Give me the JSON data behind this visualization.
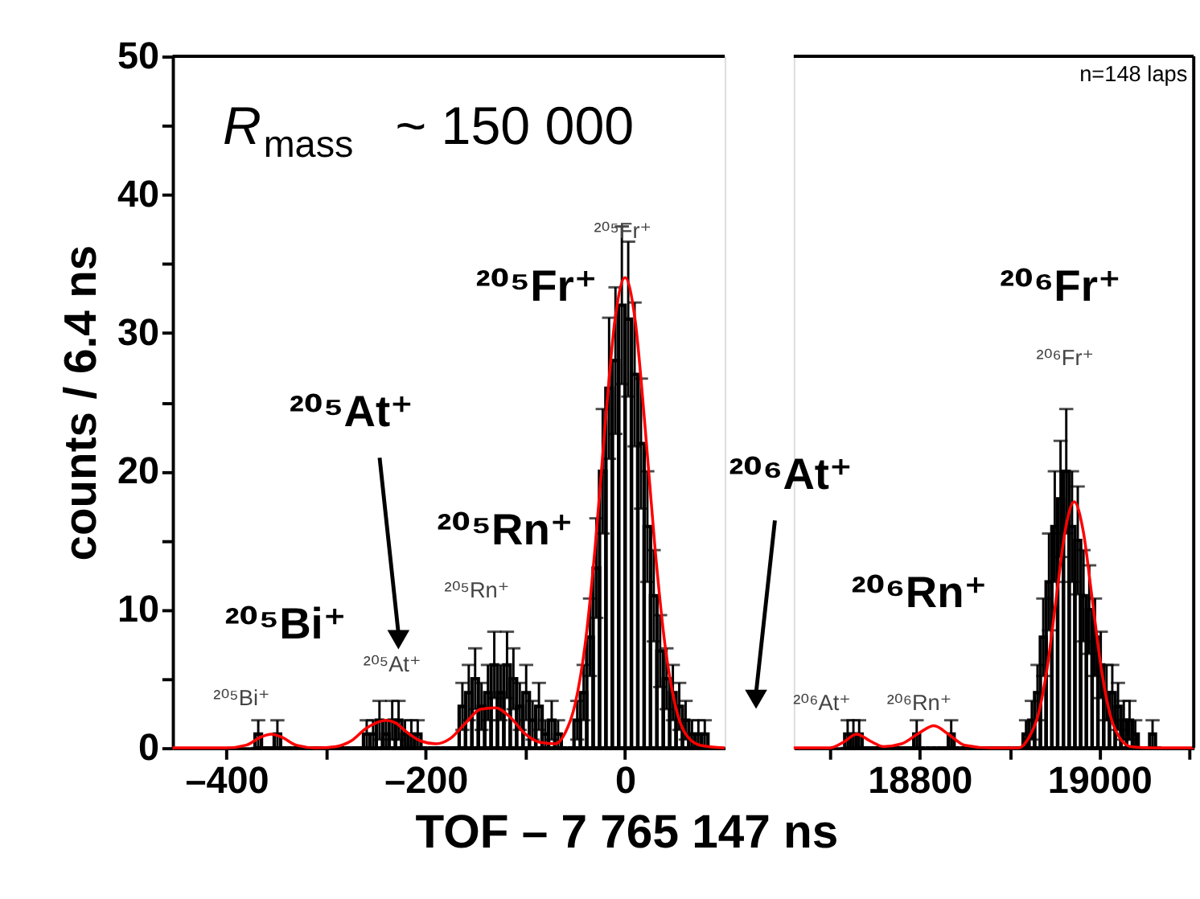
{
  "chart_data": [
    {
      "type": "histogram",
      "ylabel": "counts / 6.4 ns",
      "xlabel": "TOF – 7 765 147 ns",
      "xlim": [
        -454,
        100
      ],
      "xticks": [
        {
          "value": -400,
          "label": "–400"
        },
        {
          "value": -300,
          "label": null
        },
        {
          "value": -200,
          "label": "–200"
        },
        {
          "value": -100,
          "label": null
        },
        0
      ],
      "ylim": [
        0,
        50
      ],
      "yticks": [
        0,
        {
          "value": 5,
          "label": null
        },
        10,
        {
          "value": 15,
          "label": null
        },
        20,
        {
          "value": 25,
          "label": null
        },
        30,
        {
          "value": 35,
          "label": null
        },
        40,
        {
          "value": 45,
          "label": null
        },
        50
      ],
      "series": [
        {
          "color": "#000000",
          "bins": [
            -371.2,
            -364.8,
            -358.4,
            -352,
            -345.6,
            -339.2,
            -332.8,
            -326.4,
            -320,
            -313.6,
            -307.2,
            -300.8,
            -294.4,
            -288,
            -281.6,
            -275.2,
            -268.8,
            -262.4,
            -256,
            -249.6,
            -243.2,
            -236.8,
            -230.4,
            -224,
            -217.6,
            -211.2,
            -204.8,
            -198.4,
            -192,
            -185.6,
            -179.2,
            -172.8,
            -166.4,
            -160,
            -153.6,
            -147.2,
            -140.8,
            -134.4,
            -128,
            -121.6,
            -115.2,
            -108.8,
            -102.4,
            -96,
            -89.6,
            -83.2,
            -76.8,
            -70.4,
            -64,
            -57.6,
            -51.2,
            -44.8,
            -38.4,
            -32,
            -25.6,
            -19.2,
            -12.8,
            -6.4,
            0,
            6.4,
            12.8,
            19.2,
            25.6,
            32,
            38.4,
            44.8,
            51.2,
            57.6,
            64,
            70.4,
            76.8,
            83.2
          ],
          "values": [
            1,
            0,
            0,
            1,
            0,
            0,
            0,
            0,
            0,
            0,
            0,
            0,
            0,
            0,
            0,
            0,
            0,
            1,
            1,
            2,
            1,
            2,
            2,
            1,
            1,
            1,
            0,
            0,
            0,
            0,
            0,
            0,
            3,
            4,
            5,
            3,
            4,
            6,
            4,
            6,
            5,
            3,
            4,
            2,
            3,
            1,
            2,
            1,
            0,
            0,
            2,
            4,
            8,
            13,
            20,
            26,
            28,
            32,
            31,
            27,
            22,
            16,
            11,
            7,
            5,
            4,
            3,
            2,
            1,
            1,
            1
          ],
          "errors": [
            1,
            null,
            null,
            1,
            null,
            null,
            null,
            null,
            null,
            null,
            null,
            null,
            null,
            null,
            null,
            null,
            null,
            1,
            1,
            1.4,
            1,
            1.4,
            1.4,
            1,
            1,
            1,
            null,
            null,
            null,
            null,
            null,
            null,
            1.7,
            2,
            2.2,
            1.7,
            2,
            2.4,
            2,
            2.4,
            2.2,
            1.7,
            2,
            1.4,
            1.7,
            1,
            1.4,
            1,
            null,
            null,
            1.4,
            2,
            2.8,
            3.6,
            4.5,
            5.1,
            5.3,
            5.7,
            5.6,
            5.2,
            4.7,
            4,
            3.3,
            2.6,
            2.2,
            2,
            1.7,
            1.4,
            1,
            1,
            1
          ]
        },
        {
          "type": "line",
          "color": "#ff0000",
          "x": [
            -454,
            -400,
            -380,
            -365,
            -355,
            -345,
            -330,
            -310,
            -290,
            -275,
            -260,
            -250,
            -240,
            -230,
            -220,
            -205,
            -190,
            -175,
            -160,
            -145,
            -130,
            -115,
            -100,
            -85,
            -70,
            -60,
            -50,
            -40,
            -30,
            -20,
            -10,
            0,
            10,
            20,
            30,
            40,
            50,
            60,
            75,
            100
          ],
          "values": [
            0,
            0,
            0.2,
            0.8,
            1.0,
            0.8,
            0.2,
            0,
            0.1,
            0.5,
            1.4,
            1.8,
            2.0,
            1.8,
            1.2,
            0.5,
            0.3,
            0.7,
            1.8,
            2.8,
            2.9,
            2.2,
            1.0,
            0.4,
            0.3,
            1.1,
            3.2,
            7.5,
            14.5,
            23.3,
            31,
            34,
            31,
            23.3,
            14.5,
            7.5,
            3.2,
            1.1,
            0.2,
            0
          ]
        }
      ],
      "annotations": [
        "²⁰⁵Fr⁺",
        "²⁰⁵At⁺",
        "²⁰⁵Rn⁺",
        "²⁰⁵Bi⁺",
        "²⁰⁵Fr⁺",
        "²⁰⁵At⁺",
        "²⁰⁵Rn⁺",
        "²⁰⁵Bi⁺",
        "R$_{mass}$ ~ 150 000"
      ]
    },
    {
      "type": "histogram",
      "tick_labels": "x",
      "xlim": [
        18660,
        19105
      ],
      "xticks": [
        {
          "value": 18700,
          "label": null
        },
        18800,
        {
          "value": 18900,
          "label": null
        },
        19000,
        {
          "value": 19100,
          "label": null
        }
      ],
      "ylim": [
        0,
        50
      ],
      "series": [
        {
          "color": "#000000",
          "bins": [
            18716.8,
            18723.2,
            18729.6,
            18736,
            18742.4,
            18748.8,
            18755.2,
            18761.6,
            18768,
            18774.4,
            18780.8,
            18787.2,
            18793.6,
            18800,
            18806.4,
            18812.8,
            18819.2,
            18825.6,
            18832,
            18838.4,
            18844.8,
            18851.2,
            18857.6,
            18864,
            18870.4,
            18876.8,
            18883.2,
            18889.6,
            18896,
            18902.4,
            18908.8,
            18915.2,
            18921.6,
            18928,
            18934.4,
            18940.8,
            18947.2,
            18953.6,
            18960,
            18966.4,
            18972.8,
            18979.2,
            18985.6,
            18992,
            18998.4,
            19004.8,
            19011.2,
            19017.6,
            19024,
            19030.4,
            19036.8,
            19043.2,
            19049.6,
            19056,
            19062.4,
            19068.8
          ],
          "values": [
            1,
            1,
            1,
            0,
            0,
            0,
            0,
            0,
            0,
            0,
            0,
            0,
            1,
            0,
            0,
            0,
            0,
            0,
            1,
            0,
            0,
            0,
            0,
            0,
            0,
            0,
            0,
            0,
            0,
            0,
            0,
            1,
            2,
            4,
            8,
            12,
            16,
            18,
            20,
            16,
            15,
            11,
            10,
            8,
            6,
            4,
            4,
            3,
            2,
            2,
            1,
            0,
            0,
            1,
            0
          ],
          "errors": [
            1,
            1,
            1,
            null,
            null,
            null,
            null,
            null,
            null,
            null,
            null,
            null,
            1,
            null,
            null,
            null,
            null,
            null,
            1,
            null,
            null,
            null,
            null,
            null,
            null,
            null,
            null,
            null,
            null,
            null,
            null,
            1,
            1.4,
            2,
            2.8,
            3.5,
            4,
            4.2,
            4.5,
            4,
            3.9,
            3.3,
            3.2,
            2.8,
            2.4,
            2,
            2,
            1.7,
            1.4,
            1.4,
            1,
            null,
            null,
            1,
            null
          ]
        },
        {
          "type": "line",
          "color": "#ff0000",
          "x": [
            18660,
            18700,
            18715,
            18730,
            18745,
            18760,
            18780,
            18800,
            18816,
            18832,
            18850,
            18880,
            18910,
            18922,
            18932,
            18942,
            18952,
            18962,
            18972,
            18982,
            18992,
            19002,
            19012,
            19022,
            19035,
            19060,
            19105
          ],
          "values": [
            0,
            0,
            0.4,
            1.0,
            0.5,
            0.1,
            0.3,
            1.1,
            1.6,
            1.0,
            0.2,
            0,
            0,
            0.8,
            2.4,
            5.8,
            10.8,
            15.7,
            17.8,
            15.7,
            10.8,
            5.8,
            2.4,
            0.8,
            0.1,
            0,
            0
          ]
        }
      ],
      "annotations": [
        "²⁰⁶At⁺",
        "²⁰⁶Rn⁺",
        "²⁰⁶Fr⁺",
        "²⁰⁶At⁺",
        "²⁰⁶Rn⁺",
        "²⁰⁶Fr⁺",
        "n=148 laps"
      ]
    }
  ]
}
